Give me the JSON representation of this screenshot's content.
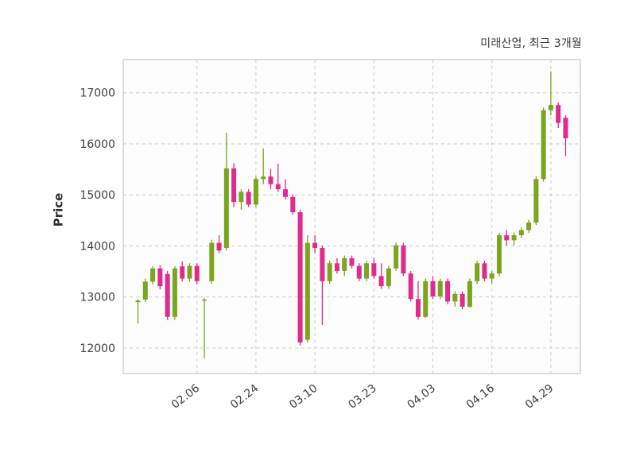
{
  "chart_data": {
    "type": "candlestick",
    "title": "미래산업, 최근 3개월",
    "ylabel": "Price",
    "ylim": [
      11500,
      17650
    ],
    "y_ticks": [
      12000,
      13000,
      14000,
      15000,
      16000,
      17000
    ],
    "x_ticks": [
      {
        "index": 8,
        "label": "02.06"
      },
      {
        "index": 16,
        "label": "02.24"
      },
      {
        "index": 24,
        "label": "03.10"
      },
      {
        "index": 32,
        "label": "03.23"
      },
      {
        "index": 40,
        "label": "04.03"
      },
      {
        "index": 48,
        "label": "04.16"
      },
      {
        "index": 56,
        "label": "04.29"
      }
    ],
    "legend_position": "none",
    "grid": "dashed",
    "colors": {
      "up": "#7aa51c",
      "down": "#e02b8c",
      "grid": "#cccccc",
      "axis_text": "#3f3f3f",
      "plot_border": "#c8c8c8",
      "plot_bg": "#fcfcfc"
    },
    "candles_format": [
      "open",
      "high",
      "low",
      "close"
    ],
    "candles": [
      [
        12900,
        12960,
        12480,
        12930
      ],
      [
        12950,
        13360,
        12900,
        13300
      ],
      [
        13300,
        13600,
        13250,
        13560
      ],
      [
        13560,
        13620,
        13150,
        13210
      ],
      [
        13450,
        13510,
        12550,
        12610
      ],
      [
        12610,
        13600,
        12550,
        13560
      ],
      [
        13600,
        13700,
        13300,
        13360
      ],
      [
        13360,
        13660,
        13300,
        13610
      ],
      [
        13610,
        13660,
        13250,
        13310
      ],
      [
        12930,
        12980,
        11800,
        12950
      ],
      [
        13310,
        14120,
        13260,
        14060
      ],
      [
        14060,
        14210,
        13860,
        13910
      ],
      [
        13960,
        16220,
        13910,
        15520
      ],
      [
        15520,
        15620,
        14760,
        14860
      ],
      [
        14860,
        15110,
        14710,
        15060
      ],
      [
        15060,
        15110,
        14760,
        14810
      ],
      [
        14810,
        15360,
        14760,
        15310
      ],
      [
        15310,
        15910,
        15210,
        15360
      ],
      [
        15360,
        15510,
        15110,
        15210
      ],
      [
        15210,
        15610,
        15060,
        15110
      ],
      [
        15110,
        15310,
        14910,
        14960
      ],
      [
        14960,
        15010,
        14610,
        14660
      ],
      [
        14660,
        14710,
        12050,
        12110
      ],
      [
        12160,
        14210,
        12110,
        14060
      ],
      [
        14060,
        14210,
        13860,
        13960
      ],
      [
        13960,
        14010,
        12450,
        13310
      ],
      [
        13310,
        13710,
        13260,
        13660
      ],
      [
        13660,
        13760,
        13460,
        13510
      ],
      [
        13510,
        13810,
        13410,
        13760
      ],
      [
        13760,
        13810,
        13560,
        13610
      ],
      [
        13610,
        13660,
        13310,
        13360
      ],
      [
        13360,
        13710,
        13310,
        13660
      ],
      [
        13660,
        13760,
        13360,
        13410
      ],
      [
        13410,
        13660,
        13160,
        13210
      ],
      [
        13210,
        13610,
        13160,
        13560
      ],
      [
        13560,
        14060,
        13510,
        14010
      ],
      [
        14010,
        14060,
        13410,
        13460
      ],
      [
        13460,
        13510,
        12910,
        12960
      ],
      [
        12960,
        13310,
        12560,
        12610
      ],
      [
        12610,
        13360,
        12590,
        13310
      ],
      [
        13310,
        13410,
        12960,
        13010
      ],
      [
        13010,
        13360,
        12960,
        13310
      ],
      [
        13310,
        13360,
        12860,
        12910
      ],
      [
        12910,
        13110,
        12810,
        13060
      ],
      [
        13060,
        13110,
        12760,
        12810
      ],
      [
        12810,
        13360,
        12790,
        13310
      ],
      [
        13310,
        13710,
        13260,
        13660
      ],
      [
        13660,
        13710,
        13310,
        13360
      ],
      [
        13360,
        13510,
        13260,
        13460
      ],
      [
        13460,
        14260,
        13410,
        14210
      ],
      [
        14210,
        14310,
        14010,
        14110
      ],
      [
        14110,
        14260,
        14010,
        14210
      ],
      [
        14210,
        14360,
        14160,
        14310
      ],
      [
        14310,
        14510,
        14260,
        14460
      ],
      [
        14460,
        15360,
        14410,
        15310
      ],
      [
        15310,
        16710,
        15260,
        16660
      ],
      [
        16660,
        17420,
        16560,
        16760
      ],
      [
        16760,
        16810,
        16310,
        16410
      ],
      [
        16510,
        16560,
        15760,
        16110
      ]
    ]
  }
}
